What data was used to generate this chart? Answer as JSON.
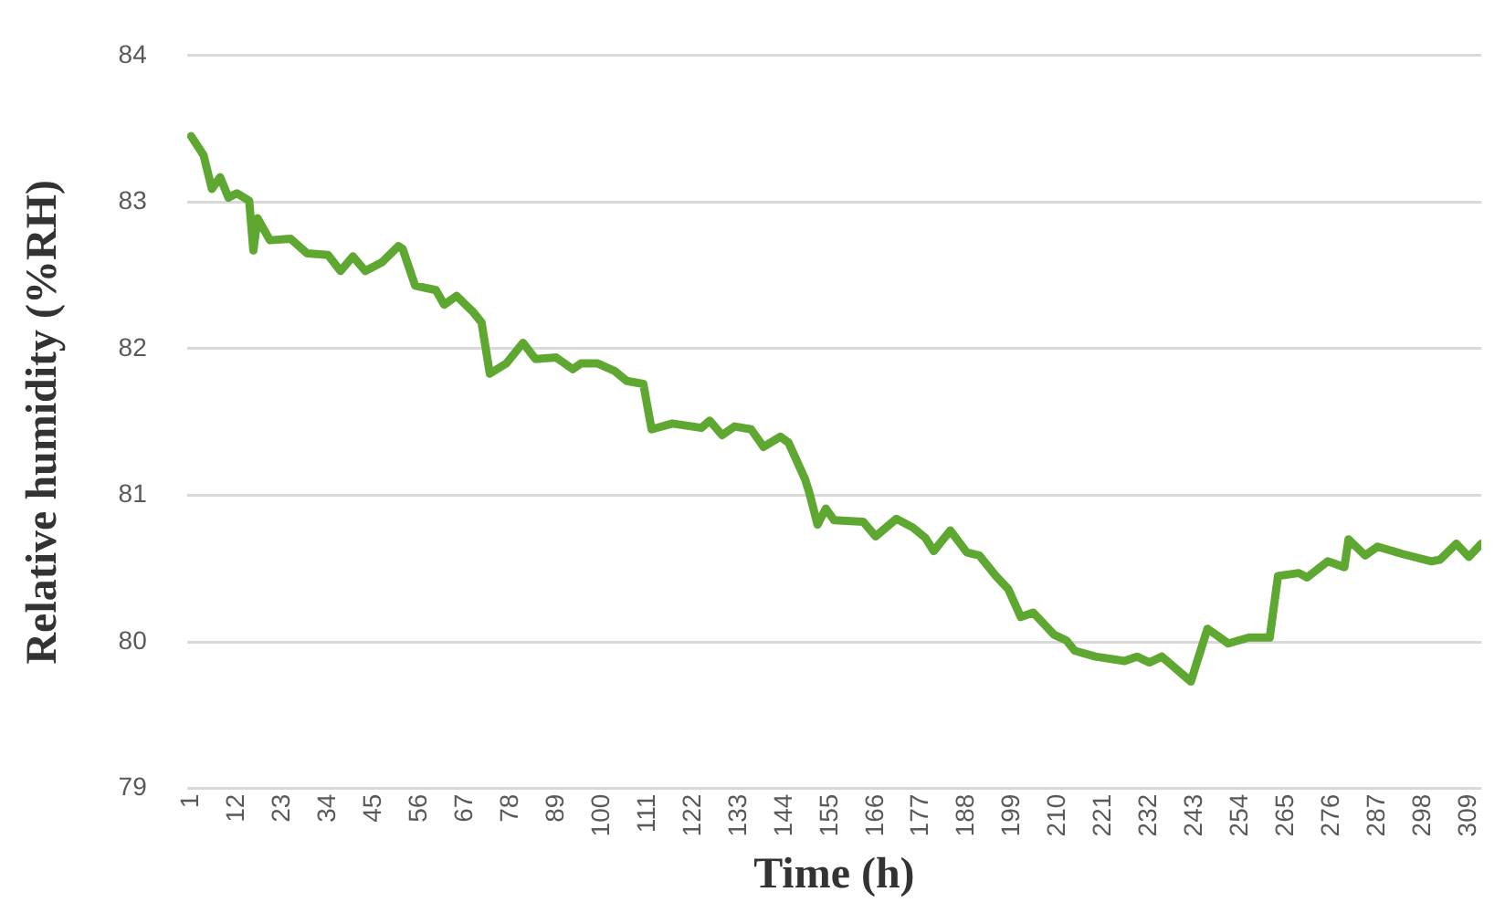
{
  "chart_data": {
    "type": "line",
    "xlabel": "Time (h)",
    "ylabel": "Relative humidity (%RH)",
    "grid": "y",
    "legend": false,
    "marker": "none",
    "line_style": "solid",
    "xlim": [
      0,
      312
    ],
    "xticks": [
      1,
      12,
      23,
      34,
      45,
      56,
      67,
      78,
      89,
      100,
      111,
      122,
      133,
      144,
      155,
      166,
      177,
      188,
      199,
      210,
      221,
      232,
      243,
      254,
      265,
      276,
      287,
      298,
      309
    ],
    "ylim": [
      79,
      84
    ],
    "yticks": [
      79,
      80,
      81,
      82,
      83,
      84
    ],
    "series": [
      {
        "color": "#5ea832",
        "x": [
          1,
          4,
          6,
          8,
          10,
          12,
          15,
          16,
          17,
          20,
          25,
          29,
          34,
          37,
          40,
          43,
          47,
          51,
          52,
          55,
          60,
          62,
          65,
          69,
          71,
          73,
          77,
          81,
          84,
          89,
          93,
          95,
          99,
          103,
          106,
          110,
          112,
          117,
          124,
          126,
          129,
          132,
          136,
          139,
          143,
          145,
          149,
          150,
          152,
          154,
          156,
          163,
          166,
          171,
          175,
          178,
          180,
          184,
          188,
          191,
          195,
          198,
          201,
          204,
          209,
          212,
          214,
          219,
          226,
          229,
          232,
          235,
          242,
          246,
          251,
          256,
          261,
          263,
          268,
          270,
          275,
          279,
          280,
          284,
          287,
          293,
          300,
          302,
          306,
          309,
          312
        ],
        "values": [
          83.45,
          83.32,
          83.09,
          83.17,
          83.03,
          83.06,
          83.01,
          82.67,
          82.89,
          82.74,
          82.75,
          82.65,
          82.64,
          82.53,
          82.63,
          82.53,
          82.59,
          82.7,
          82.68,
          82.43,
          82.4,
          82.3,
          82.36,
          82.25,
          82.18,
          81.83,
          81.9,
          82.04,
          81.93,
          81.94,
          81.86,
          81.9,
          81.9,
          81.85,
          81.78,
          81.76,
          81.45,
          81.49,
          81.46,
          81.51,
          81.41,
          81.47,
          81.45,
          81.33,
          81.4,
          81.36,
          81.11,
          81.02,
          80.8,
          80.91,
          80.83,
          80.82,
          80.72,
          80.84,
          80.78,
          80.71,
          80.62,
          80.76,
          80.61,
          80.59,
          80.45,
          80.36,
          80.17,
          80.2,
          80.05,
          80.01,
          79.94,
          79.9,
          79.87,
          79.9,
          79.86,
          79.9,
          79.73,
          80.09,
          79.99,
          80.03,
          80.03,
          80.45,
          80.47,
          80.44,
          80.55,
          80.51,
          80.7,
          80.59,
          80.65,
          80.6,
          80.55,
          80.56,
          80.67,
          80.58,
          80.67
        ]
      }
    ]
  }
}
